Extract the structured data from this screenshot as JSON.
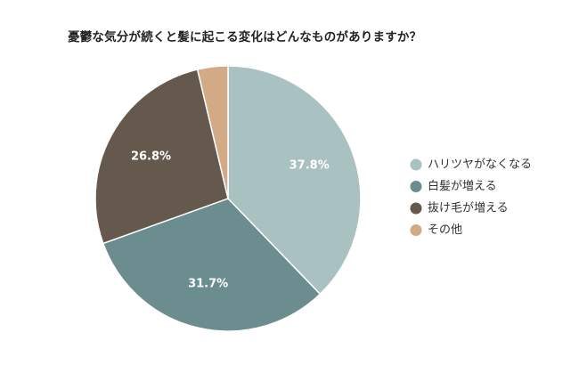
{
  "chart_data": {
    "type": "pie",
    "title": "憂鬱な気分が続くと髪に起こる変化はどんなものがありますか？",
    "categories": [
      "ハリツヤがなくなる",
      "白髪が増える",
      "抜け毛が増える",
      "その他"
    ],
    "values": [
      37.8,
      31.7,
      26.8,
      3.7
    ],
    "value_labels": [
      "37.8%",
      "31.7%",
      "26.8%",
      ""
    ],
    "colors": [
      "#a9c1c1",
      "#6b8d90",
      "#65584d",
      "#d2aa86"
    ],
    "start_angle_deg": 0,
    "direction": "clockwise",
    "legend_position": "right"
  }
}
